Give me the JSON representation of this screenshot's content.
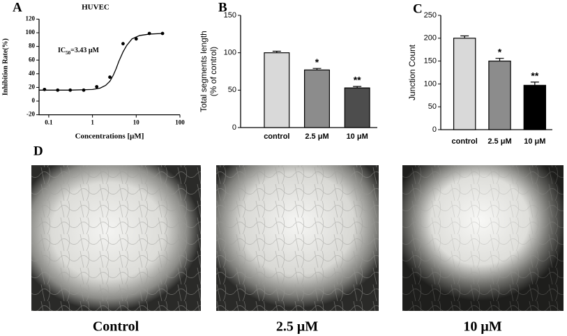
{
  "chart_data": [
    {
      "type": "scatter",
      "label": "A",
      "title": "HUVEC",
      "x_label": "Concentrations [μM]",
      "y_label": "Inhibition Rate(%)",
      "annotation": {
        "prefix": "IC",
        "sub": "50",
        "suffix": "=3.43 μM"
      },
      "log_x": true,
      "color": "#000000",
      "x": [
        0.08,
        0.16,
        0.31,
        0.63,
        1.25,
        2.5,
        5,
        10,
        20,
        40
      ],
      "values": [
        17,
        16,
        16,
        16,
        21,
        35,
        84,
        91,
        99,
        99
      ],
      "curve": {
        "x": [
          0.06,
          0.3,
          1,
          1.5,
          2,
          2.5,
          3,
          3.5,
          4,
          5,
          6,
          8,
          12,
          20,
          40
        ],
        "values": [
          16,
          16,
          17,
          19,
          23,
          29,
          38,
          48,
          58,
          72,
          81,
          91,
          96,
          98,
          99
        ]
      },
      "xlim": [
        0.06,
        100
      ],
      "xticks": [
        0.1,
        1,
        10,
        100
      ],
      "ylim": [
        -20,
        120
      ],
      "yticks": [
        -20,
        0,
        20,
        40,
        60,
        80,
        100,
        120
      ]
    },
    {
      "type": "bar",
      "label": "B",
      "y_label": [
        "Total segments length",
        "(% of control)"
      ],
      "categories": [
        "control",
        "2.5 μM",
        "10 μM"
      ],
      "values": [
        100,
        77,
        53
      ],
      "errors": [
        2,
        2,
        2
      ],
      "colors": [
        "#d9d9d9",
        "#8c8c8c",
        "#4d4d4d"
      ],
      "significance": [
        null,
        "*",
        "**"
      ],
      "ylim": [
        0,
        150
      ],
      "yticks": [
        0,
        50,
        100,
        150
      ]
    },
    {
      "type": "bar",
      "label": "C",
      "y_label": [
        "Junction Count"
      ],
      "categories": [
        "control",
        "2.5 μM",
        "10 μM"
      ],
      "values": [
        200,
        150,
        97
      ],
      "errors": [
        5,
        6,
        7
      ],
      "colors": [
        "#d9d9d9",
        "#8c8c8c",
        "#000000"
      ],
      "significance": [
        null,
        "*",
        "**"
      ],
      "ylim": [
        0,
        250
      ],
      "yticks": [
        0,
        50,
        100,
        150,
        200,
        250
      ]
    }
  ],
  "images": {
    "label": "D",
    "captions": [
      "Control",
      "2.5 μM",
      "10 μM"
    ]
  }
}
